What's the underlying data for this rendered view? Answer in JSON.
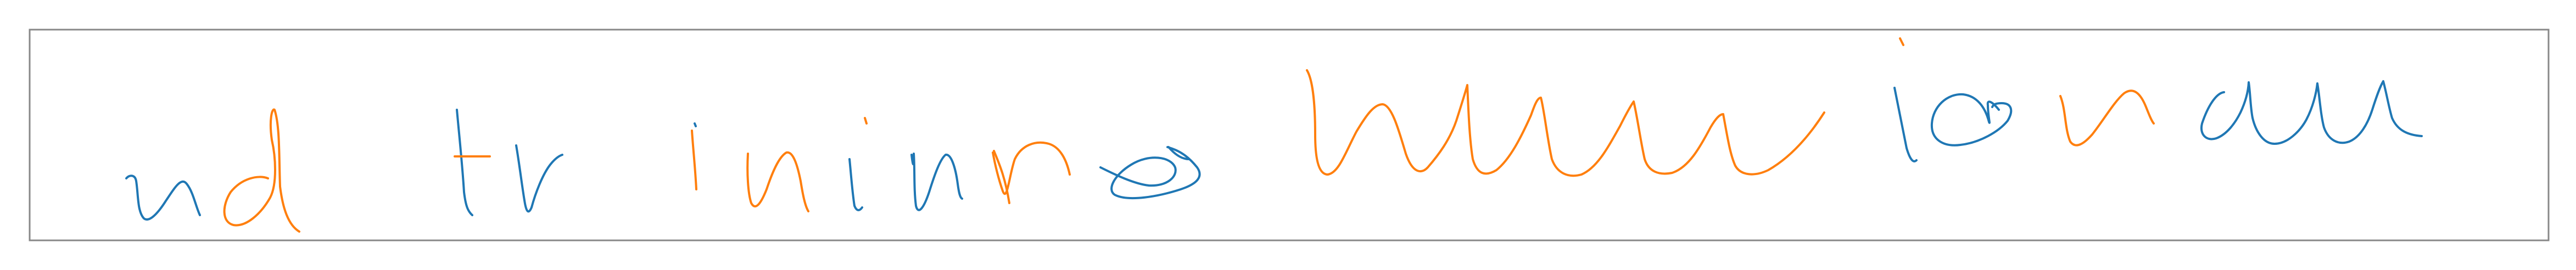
{
  "colors": {
    "background": "#ffffff",
    "frame": "#888888",
    "ink_blue": "#1f77b4",
    "ink_orange": "#ff7f0e"
  },
  "handwriting": {
    "words": [
      {
        "id": "nd",
        "ink": "blue-orange"
      },
      {
        "id": "tr",
        "ink": "blue-orange"
      },
      {
        "id": "ininre",
        "ink": "orange-blue"
      },
      {
        "id": "loop",
        "ink": "blue"
      },
      {
        "id": "hwwww",
        "ink": "orange"
      },
      {
        "id": "io",
        "ink": "blue-orange"
      },
      {
        "id": "uncu",
        "ink": "orange-blue"
      }
    ]
  }
}
